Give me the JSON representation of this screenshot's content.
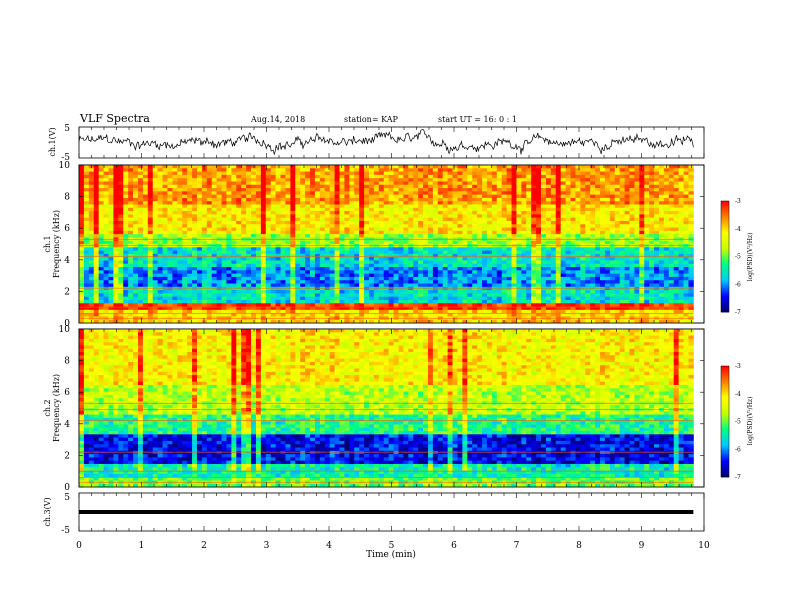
{
  "header": {
    "title": "VLF Spectra",
    "date": "Aug.14, 2018",
    "station": "station= KAP",
    "start": "start  UT  =   16: 0  : 1"
  },
  "chart_data": [
    {
      "type": "line",
      "name": "ch1-waveform",
      "ylabel": "ch.1(V)",
      "xlim": [
        0,
        9.83
      ],
      "ylim": [
        -5,
        5
      ],
      "yticks": [
        "5",
        "-5"
      ]
    },
    {
      "type": "heatmap",
      "name": "ch1-spectrogram",
      "ylabel": "ch.1\nFrequency  (kHz)",
      "ylabel_lines": [
        "ch.1",
        "Frequency  (kHz)"
      ],
      "ylim": [
        0,
        10
      ],
      "yticks": [
        "0",
        "2",
        "4",
        "6",
        "8",
        "10"
      ],
      "colorbar": {
        "label": "log(PSD)(V²/Hz)",
        "min": -7,
        "max": -3,
        "ticks": [
          "-3",
          "-4",
          "-5",
          "-6",
          "-7"
        ]
      }
    },
    {
      "type": "heatmap",
      "name": "ch2-spectrogram",
      "ylabel_lines": [
        "ch.2",
        "Frequency  (kHz)"
      ],
      "ylim": [
        0,
        10
      ],
      "yticks": [
        "0",
        "2",
        "4",
        "6",
        "8",
        "10"
      ],
      "colorbar": {
        "label": "log(PSD)(V²/Hz)",
        "min": -7,
        "max": -3,
        "ticks": [
          "-3",
          "-4",
          "-5",
          "-6",
          "-7"
        ]
      }
    },
    {
      "type": "line",
      "name": "ch3-waveform",
      "ylabel": "ch.3(V)",
      "ylim": [
        -5,
        5
      ],
      "yticks": [
        "5",
        "-5"
      ],
      "level": 0
    }
  ],
  "xaxis": {
    "label": "Time  (min)",
    "xlim": [
      0,
      10
    ],
    "ticks": [
      "0",
      "1",
      "2",
      "3",
      "4",
      "5",
      "6",
      "7",
      "8",
      "9",
      "10"
    ]
  },
  "colors": {
    "line": "#000000",
    "colormap": [
      "#000070",
      "#0000ff",
      "#00c8ff",
      "#00ff80",
      "#c8ff00",
      "#ffff00",
      "#ff8000",
      "#ff0000",
      "#ffffff"
    ]
  }
}
